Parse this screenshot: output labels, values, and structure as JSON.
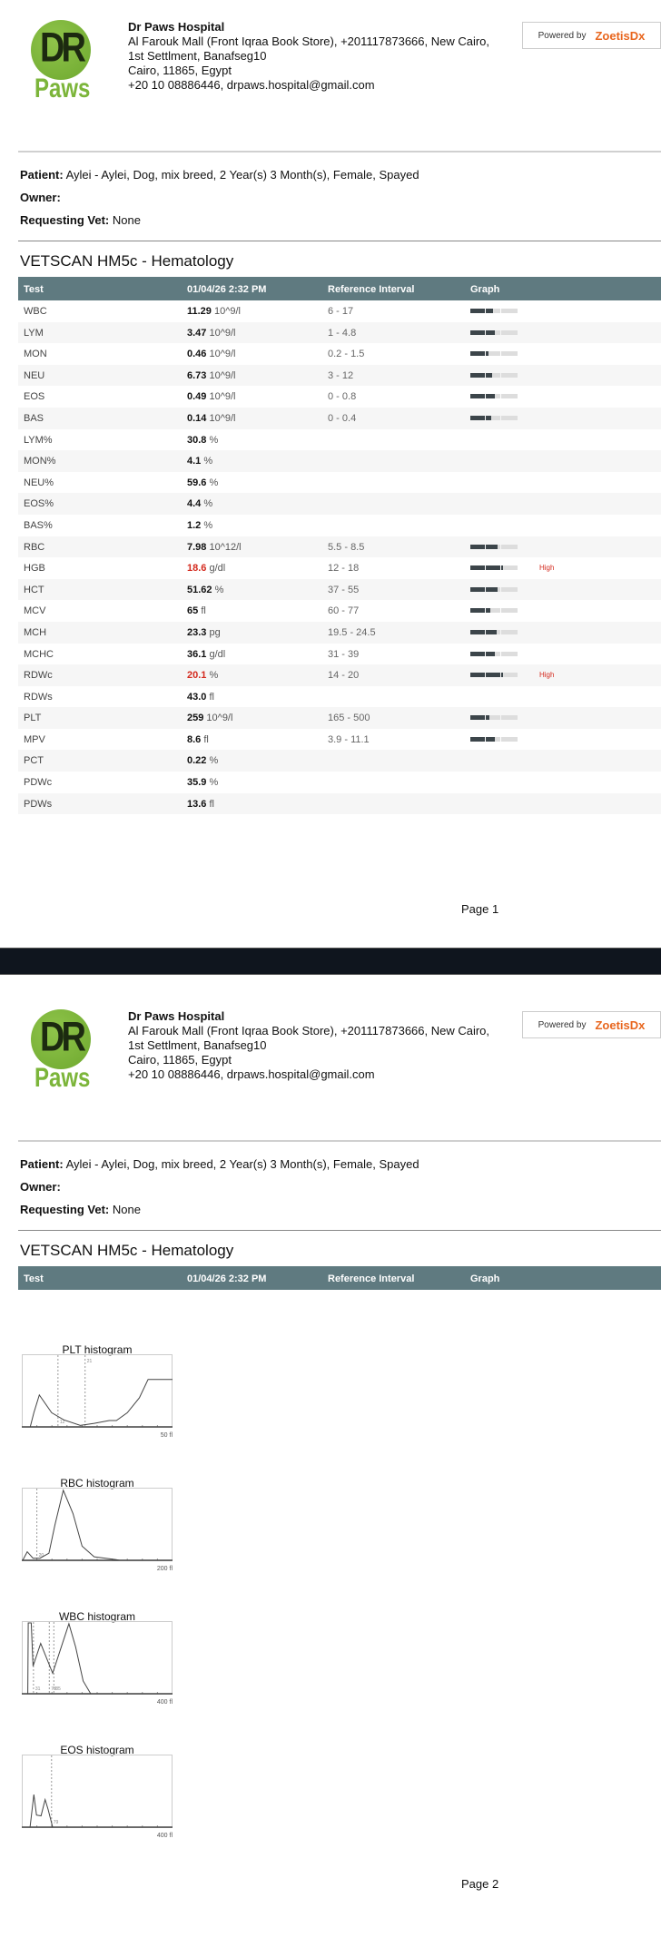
{
  "logo": {
    "text_top": "DR",
    "text_bottom": "Paws",
    "color": "#7cb53a"
  },
  "hospital": {
    "name": "Dr Paws Hospital",
    "line1": "Al Farouk Mall (Front Iqraa Book Store), +201117873666, New Cairo,",
    "line2": "1st Settlment, Banafseg10",
    "line3": "Cairo, 11865, Egypt",
    "line4": "+20 10 08886446, drpaws.hospital@gmail.com"
  },
  "powered": {
    "label": "Powered by",
    "brand": "ZoetisDx",
    "brand_color": "#e8661e"
  },
  "patient": {
    "patient_label": "Patient:",
    "patient_value": "Aylei - Aylei, Dog, mix breed, 2 Year(s) 3 Month(s), Female, Spayed",
    "owner_label": "Owner:",
    "owner_value": "",
    "vet_label": "Requesting Vet:",
    "vet_value": "None"
  },
  "report": {
    "title": "VETSCAN HM5c - Hematology",
    "headers": [
      "Test",
      "01/04/26 2:32 PM",
      "Reference Interval",
      "Graph"
    ],
    "header_color": "#5f7a80",
    "high_color": "#d42a1e"
  },
  "results": [
    {
      "test": "WBC",
      "value": "11.29",
      "unit": "10^9/l",
      "ref": "6 - 17"
    },
    {
      "test": "LYM",
      "value": "3.47",
      "unit": "10^9/l",
      "ref": "1 - 4.8"
    },
    {
      "test": "MON",
      "value": "0.46",
      "unit": "10^9/l",
      "ref": "0.2 - 1.5"
    },
    {
      "test": "NEU",
      "value": "6.73",
      "unit": "10^9/l",
      "ref": "3 - 12"
    },
    {
      "test": "EOS",
      "value": "0.49",
      "unit": "10^9/l",
      "ref": "0 - 0.8"
    },
    {
      "test": "BAS",
      "value": "0.14",
      "unit": "10^9/l",
      "ref": "0 - 0.4"
    },
    {
      "test": "LYM%",
      "value": "30.8",
      "unit": "%",
      "ref": ""
    },
    {
      "test": "MON%",
      "value": "4.1",
      "unit": "%",
      "ref": ""
    },
    {
      "test": "NEU%",
      "value": "59.6",
      "unit": "%",
      "ref": ""
    },
    {
      "test": "EOS%",
      "value": "4.4",
      "unit": "%",
      "ref": ""
    },
    {
      "test": "BAS%",
      "value": "1.2",
      "unit": "%",
      "ref": ""
    },
    {
      "test": "RBC",
      "value": "7.98",
      "unit": "10^12/l",
      "ref": "5.5 - 8.5"
    },
    {
      "test": "HGB",
      "value": "18.6",
      "unit": "g/dl",
      "ref": "12 - 18",
      "flag": "High"
    },
    {
      "test": "HCT",
      "value": "51.62",
      "unit": "%",
      "ref": "37 - 55"
    },
    {
      "test": "MCV",
      "value": "65",
      "unit": "fl",
      "ref": "60 - 77"
    },
    {
      "test": "MCH",
      "value": "23.3",
      "unit": "pg",
      "ref": "19.5 - 24.5"
    },
    {
      "test": "MCHC",
      "value": "36.1",
      "unit": "g/dl",
      "ref": "31 - 39"
    },
    {
      "test": "RDWc",
      "value": "20.1",
      "unit": "%",
      "ref": "14 - 20",
      "flag": "High"
    },
    {
      "test": "RDWs",
      "value": "43.0",
      "unit": "fl",
      "ref": ""
    },
    {
      "test": "PLT",
      "value": "259",
      "unit": "10^9/l",
      "ref": "165 - 500"
    },
    {
      "test": "MPV",
      "value": "8.6",
      "unit": "fl",
      "ref": "3.9 - 11.1"
    },
    {
      "test": "PCT",
      "value": "0.22",
      "unit": "%",
      "ref": ""
    },
    {
      "test": "PDWc",
      "value": "35.9",
      "unit": "%",
      "ref": ""
    },
    {
      "test": "PDWs",
      "value": "13.6",
      "unit": "fl",
      "ref": ""
    }
  ],
  "pages": [
    "Page 1",
    "Page 2"
  ],
  "chart_data": [
    {
      "type": "line",
      "title": "PLT histogram",
      "x_axis_label": "50 fl",
      "xlim": [
        0,
        50
      ],
      "markers": [
        {
          "x": 12,
          "label": "12"
        },
        {
          "x": 21,
          "label": "21"
        }
      ],
      "x": [
        0,
        2.8,
        4,
        5.8,
        9.9,
        13.9,
        19.4,
        24,
        29,
        31.4,
        35,
        39,
        41.9,
        48,
        50
      ],
      "y": [
        0,
        0,
        20,
        45,
        20,
        10,
        2,
        5,
        9,
        9,
        20,
        41,
        67,
        67,
        67
      ]
    },
    {
      "type": "line",
      "title": "RBC histogram",
      "x_axis_label": "200 fl",
      "xlim": [
        0,
        200
      ],
      "markers": [
        {
          "x": 20,
          "label": "20"
        }
      ],
      "x": [
        0,
        1.2,
        7.2,
        15,
        24,
        36,
        44,
        55,
        68,
        80,
        96,
        125,
        130
      ],
      "y": [
        0,
        0,
        12,
        3,
        3,
        10,
        50,
        99,
        66,
        20,
        5,
        1,
        0
      ]
    },
    {
      "type": "line",
      "title": "WBC histogram",
      "x_axis_label": "400 fl",
      "xlim": [
        0,
        400
      ],
      "markers": [
        {
          "x": 31,
          "label": "31"
        },
        {
          "x": 73,
          "label": "73"
        },
        {
          "x": 85,
          "label": "85"
        }
      ],
      "x": [
        16,
        17,
        25,
        30,
        50,
        82,
        125,
        143,
        163,
        183
      ],
      "y": [
        0,
        100,
        100,
        39,
        71,
        29,
        99,
        66,
        18,
        0
      ]
    },
    {
      "type": "line",
      "title": "EOS histogram",
      "x_axis_label": "400 fl",
      "xlim": [
        0,
        400
      ],
      "markers": [
        {
          "x": 79,
          "label": "79"
        }
      ],
      "x": [
        22,
        32,
        39,
        51,
        62,
        70,
        80,
        82
      ],
      "y": [
        0,
        46,
        17,
        16,
        39,
        25,
        4,
        0
      ]
    }
  ]
}
